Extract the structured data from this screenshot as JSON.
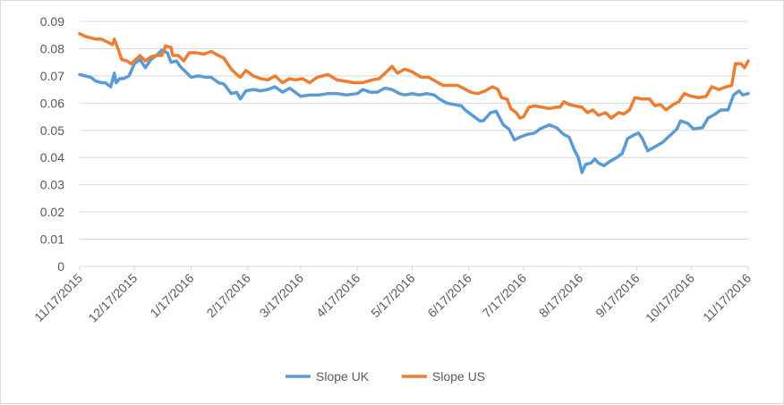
{
  "chart_data": {
    "type": "line",
    "title": "",
    "xlabel": "",
    "ylabel": "",
    "ylim": [
      0,
      0.09
    ],
    "y_ticks": [
      "0",
      "0.01",
      "0.02",
      "0.03",
      "0.04",
      "0.05",
      "0.06",
      "0.07",
      "0.08",
      "0.09"
    ],
    "x_range": [
      "2015-11-17",
      "2016-11-17"
    ],
    "x_ticks": [
      "11/17/2015",
      "12/17/2015",
      "1/17/2016",
      "2/17/2016",
      "3/17/2016",
      "4/17/2016",
      "5/17/2016",
      "6/17/2016",
      "7/17/2016",
      "8/17/2016",
      "9/17/2016",
      "10/17/2016",
      "11/17/2016"
    ],
    "grid": "horizontal",
    "legend": "bottom",
    "series": [
      {
        "name": "Slope UK",
        "color": "#5b9bd5",
        "points": [
          [
            "2015-11-17",
            0.0705
          ],
          [
            "2015-11-20",
            0.07
          ],
          [
            "2015-11-23",
            0.0695
          ],
          [
            "2015-11-26",
            0.068
          ],
          [
            "2015-11-29",
            0.0675
          ],
          [
            "2015-12-01",
            0.0675
          ],
          [
            "2015-12-04",
            0.066
          ],
          [
            "2015-12-06",
            0.071
          ],
          [
            "2015-12-07",
            0.0675
          ],
          [
            "2015-12-09",
            0.069
          ],
          [
            "2015-12-11",
            0.069
          ],
          [
            "2015-12-14",
            0.07
          ],
          [
            "2015-12-17",
            0.0745
          ],
          [
            "2015-12-20",
            0.076
          ],
          [
            "2015-12-23",
            0.073
          ],
          [
            "2015-12-26",
            0.076
          ],
          [
            "2015-12-29",
            0.0775
          ],
          [
            "2016-01-01",
            0.0795
          ],
          [
            "2016-01-04",
            0.0785
          ],
          [
            "2016-01-06",
            0.075
          ],
          [
            "2016-01-09",
            0.0755
          ],
          [
            "2016-01-11",
            0.0735
          ],
          [
            "2016-01-14",
            0.0715
          ],
          [
            "2016-01-17",
            0.0695
          ],
          [
            "2016-01-21",
            0.07
          ],
          [
            "2016-01-25",
            0.0695
          ],
          [
            "2016-01-28",
            0.0695
          ],
          [
            "2016-02-01",
            0.0675
          ],
          [
            "2016-02-04",
            0.067
          ],
          [
            "2016-02-08",
            0.0635
          ],
          [
            "2016-02-11",
            0.064
          ],
          [
            "2016-02-13",
            0.0615
          ],
          [
            "2016-02-16",
            0.0645
          ],
          [
            "2016-02-20",
            0.065
          ],
          [
            "2016-02-24",
            0.0645
          ],
          [
            "2016-02-28",
            0.065
          ],
          [
            "2016-03-03",
            0.066
          ],
          [
            "2016-03-07",
            0.064
          ],
          [
            "2016-03-11",
            0.0655
          ],
          [
            "2016-03-14",
            0.064
          ],
          [
            "2016-03-17",
            0.0625
          ],
          [
            "2016-03-22",
            0.063
          ],
          [
            "2016-03-27",
            0.063
          ],
          [
            "2016-04-01",
            0.0635
          ],
          [
            "2016-04-06",
            0.0635
          ],
          [
            "2016-04-11",
            0.063
          ],
          [
            "2016-04-17",
            0.0635
          ],
          [
            "2016-04-20",
            0.065
          ],
          [
            "2016-04-24",
            0.064
          ],
          [
            "2016-04-28",
            0.064
          ],
          [
            "2016-05-02",
            0.0655
          ],
          [
            "2016-05-06",
            0.065
          ],
          [
            "2016-05-10",
            0.0635
          ],
          [
            "2016-05-13",
            0.063
          ],
          [
            "2016-05-17",
            0.0635
          ],
          [
            "2016-05-21",
            0.063
          ],
          [
            "2016-05-25",
            0.0635
          ],
          [
            "2016-05-29",
            0.063
          ],
          [
            "2016-06-01",
            0.0615
          ],
          [
            "2016-06-05",
            0.06
          ],
          [
            "2016-06-09",
            0.0595
          ],
          [
            "2016-06-13",
            0.059
          ],
          [
            "2016-06-15",
            0.0575
          ],
          [
            "2016-06-19",
            0.0555
          ],
          [
            "2016-06-23",
            0.0535
          ],
          [
            "2016-06-25",
            0.0535
          ],
          [
            "2016-06-29",
            0.0565
          ],
          [
            "2016-07-02",
            0.057
          ],
          [
            "2016-07-06",
            0.052
          ],
          [
            "2016-07-09",
            0.0505
          ],
          [
            "2016-07-12",
            0.0465
          ],
          [
            "2016-07-15",
            0.0475
          ],
          [
            "2016-07-19",
            0.0485
          ],
          [
            "2016-07-23",
            0.049
          ],
          [
            "2016-07-26",
            0.0505
          ],
          [
            "2016-07-31",
            0.052
          ],
          [
            "2016-08-04",
            0.051
          ],
          [
            "2016-08-08",
            0.0485
          ],
          [
            "2016-08-11",
            0.0475
          ],
          [
            "2016-08-14",
            0.0425
          ],
          [
            "2016-08-16",
            0.04
          ],
          [
            "2016-08-18",
            0.0345
          ],
          [
            "2016-08-20",
            0.0375
          ],
          [
            "2016-08-23",
            0.038
          ],
          [
            "2016-08-25",
            0.0395
          ],
          [
            "2016-08-27",
            0.038
          ],
          [
            "2016-08-30",
            0.037
          ],
          [
            "2016-09-02",
            0.0385
          ],
          [
            "2016-09-06",
            0.04
          ],
          [
            "2016-09-09",
            0.0415
          ],
          [
            "2016-09-12",
            0.047
          ],
          [
            "2016-09-16",
            0.0485
          ],
          [
            "2016-09-18",
            0.049
          ],
          [
            "2016-09-20",
            0.047
          ],
          [
            "2016-09-23",
            0.0425
          ],
          [
            "2016-09-27",
            0.044
          ],
          [
            "2016-10-01",
            0.0455
          ],
          [
            "2016-10-05",
            0.048
          ],
          [
            "2016-10-09",
            0.0505
          ],
          [
            "2016-10-11",
            0.0535
          ],
          [
            "2016-10-15",
            0.0525
          ],
          [
            "2016-10-18",
            0.0505
          ],
          [
            "2016-10-23",
            0.051
          ],
          [
            "2016-10-26",
            0.0545
          ],
          [
            "2016-10-30",
            0.056
          ],
          [
            "2016-11-02",
            0.0575
          ],
          [
            "2016-11-06",
            0.0575
          ],
          [
            "2016-11-09",
            0.063
          ],
          [
            "2016-11-12",
            0.0645
          ],
          [
            "2016-11-14",
            0.063
          ],
          [
            "2016-11-17",
            0.0635
          ]
        ]
      },
      {
        "name": "Slope US",
        "color": "#ed7d31",
        "points": [
          [
            "2015-11-17",
            0.0855
          ],
          [
            "2015-11-20",
            0.0845
          ],
          [
            "2015-11-23",
            0.084
          ],
          [
            "2015-11-26",
            0.0835
          ],
          [
            "2015-11-29",
            0.0835
          ],
          [
            "2015-12-02",
            0.0825
          ],
          [
            "2015-12-05",
            0.0815
          ],
          [
            "2015-12-06",
            0.0835
          ],
          [
            "2015-12-08",
            0.08
          ],
          [
            "2015-12-10",
            0.076
          ],
          [
            "2015-12-13",
            0.0755
          ],
          [
            "2015-12-15",
            0.0745
          ],
          [
            "2015-12-17",
            0.0755
          ],
          [
            "2015-12-20",
            0.0775
          ],
          [
            "2015-12-23",
            0.0755
          ],
          [
            "2015-12-26",
            0.077
          ],
          [
            "2015-12-29",
            0.0775
          ],
          [
            "2016-01-01",
            0.0775
          ],
          [
            "2016-01-03",
            0.081
          ],
          [
            "2016-01-06",
            0.0805
          ],
          [
            "2016-01-07",
            0.0775
          ],
          [
            "2016-01-10",
            0.0775
          ],
          [
            "2016-01-13",
            0.0755
          ],
          [
            "2016-01-16",
            0.0785
          ],
          [
            "2016-01-20",
            0.0785
          ],
          [
            "2016-01-24",
            0.078
          ],
          [
            "2016-01-28",
            0.079
          ],
          [
            "2016-02-01",
            0.0775
          ],
          [
            "2016-02-04",
            0.0765
          ],
          [
            "2016-02-08",
            0.0725
          ],
          [
            "2016-02-11",
            0.0705
          ],
          [
            "2016-02-13",
            0.0695
          ],
          [
            "2016-02-16",
            0.072
          ],
          [
            "2016-02-20",
            0.07
          ],
          [
            "2016-02-24",
            0.069
          ],
          [
            "2016-02-28",
            0.0685
          ],
          [
            "2016-03-03",
            0.07
          ],
          [
            "2016-03-07",
            0.0675
          ],
          [
            "2016-03-11",
            0.069
          ],
          [
            "2016-03-14",
            0.0685
          ],
          [
            "2016-03-18",
            0.069
          ],
          [
            "2016-03-22",
            0.0675
          ],
          [
            "2016-03-26",
            0.0695
          ],
          [
            "2016-04-01",
            0.0705
          ],
          [
            "2016-04-06",
            0.0685
          ],
          [
            "2016-04-11",
            0.068
          ],
          [
            "2016-04-15",
            0.0675
          ],
          [
            "2016-04-20",
            0.0675
          ],
          [
            "2016-04-25",
            0.0685
          ],
          [
            "2016-04-29",
            0.069
          ],
          [
            "2016-05-03",
            0.0715
          ],
          [
            "2016-05-06",
            0.0735
          ],
          [
            "2016-05-09",
            0.071
          ],
          [
            "2016-05-13",
            0.0725
          ],
          [
            "2016-05-17",
            0.0715
          ],
          [
            "2016-05-22",
            0.0695
          ],
          [
            "2016-05-26",
            0.0695
          ],
          [
            "2016-05-30",
            0.068
          ],
          [
            "2016-06-03",
            0.0665
          ],
          [
            "2016-06-07",
            0.0665
          ],
          [
            "2016-06-11",
            0.0665
          ],
          [
            "2016-06-14",
            0.0655
          ],
          [
            "2016-06-18",
            0.064
          ],
          [
            "2016-06-22",
            0.0635
          ],
          [
            "2016-06-26",
            0.0645
          ],
          [
            "2016-06-30",
            0.066
          ],
          [
            "2016-07-03",
            0.065
          ],
          [
            "2016-07-05",
            0.062
          ],
          [
            "2016-07-08",
            0.0615
          ],
          [
            "2016-07-10",
            0.058
          ],
          [
            "2016-07-13",
            0.0565
          ],
          [
            "2016-07-15",
            0.0545
          ],
          [
            "2016-07-17",
            0.055
          ],
          [
            "2016-07-20",
            0.0585
          ],
          [
            "2016-07-23",
            0.059
          ],
          [
            "2016-07-27",
            0.0585
          ],
          [
            "2016-07-31",
            0.058
          ],
          [
            "2016-08-04",
            0.0585
          ],
          [
            "2016-08-06",
            0.0585
          ],
          [
            "2016-08-08",
            0.0605
          ],
          [
            "2016-08-11",
            0.0595
          ],
          [
            "2016-08-14",
            0.059
          ],
          [
            "2016-08-18",
            0.0585
          ],
          [
            "2016-08-21",
            0.0565
          ],
          [
            "2016-08-24",
            0.0575
          ],
          [
            "2016-08-27",
            0.0555
          ],
          [
            "2016-08-31",
            0.0565
          ],
          [
            "2016-09-03",
            0.0545
          ],
          [
            "2016-09-07",
            0.0565
          ],
          [
            "2016-09-10",
            0.056
          ],
          [
            "2016-09-13",
            0.0575
          ],
          [
            "2016-09-16",
            0.062
          ],
          [
            "2016-09-20",
            0.0615
          ],
          [
            "2016-09-24",
            0.0615
          ],
          [
            "2016-09-27",
            0.059
          ],
          [
            "2016-09-30",
            0.0595
          ],
          [
            "2016-10-03",
            0.0575
          ],
          [
            "2016-10-07",
            0.0595
          ],
          [
            "2016-10-10",
            0.0605
          ],
          [
            "2016-10-13",
            0.0635
          ],
          [
            "2016-10-17",
            0.0625
          ],
          [
            "2016-10-21",
            0.062
          ],
          [
            "2016-10-25",
            0.0625
          ],
          [
            "2016-10-28",
            0.066
          ],
          [
            "2016-11-01",
            0.065
          ],
          [
            "2016-11-05",
            0.066
          ],
          [
            "2016-11-08",
            0.0665
          ],
          [
            "2016-11-10",
            0.0745
          ],
          [
            "2016-11-13",
            0.0745
          ],
          [
            "2016-11-15",
            0.073
          ],
          [
            "2016-11-17",
            0.0755
          ]
        ]
      }
    ]
  }
}
